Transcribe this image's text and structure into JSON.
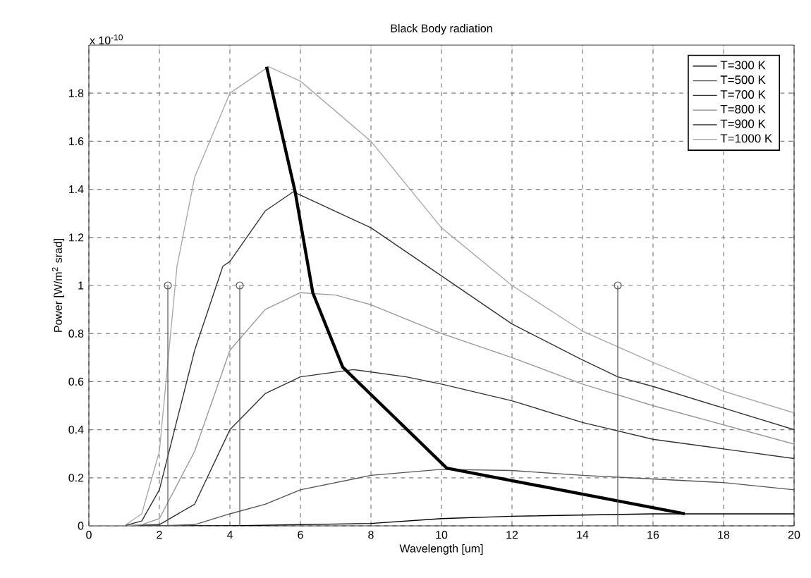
{
  "chart_data": {
    "type": "line",
    "title": "Black Body radiation",
    "xlabel": "Wavelength [um]",
    "ylabel": "Power [W/m$^{2}$ srad]",
    "annotations": [
      "x 10$^{-10}$"
    ],
    "xlim": [
      0,
      20
    ],
    "ylim": [
      0,
      2
    ],
    "xticks": [
      0,
      2,
      4,
      6,
      8,
      10,
      12,
      14,
      16,
      18,
      20
    ],
    "yticks": [
      0,
      0.2,
      0.4,
      0.6,
      0.8,
      1,
      1.2,
      1.4,
      1.6,
      1.8
    ],
    "grid": true,
    "legend": "top right",
    "line_style": "solid",
    "marker": "none",
    "series": [
      {
        "name": "T=300 K",
        "color": "#000000",
        "x": [
          0,
          4,
          6,
          8,
          10,
          12,
          14,
          16,
          18,
          20
        ],
        "values": [
          0,
          0,
          0.005,
          0.01,
          0.03,
          0.04,
          0.045,
          0.05,
          0.05,
          0.05
        ]
      },
      {
        "name": "T=500 K",
        "color": "#555555",
        "x": [
          0,
          2,
          3,
          4,
          5,
          6,
          8,
          10,
          12,
          14,
          16,
          18,
          20
        ],
        "values": [
          0,
          0,
          0.005,
          0.05,
          0.09,
          0.15,
          0.21,
          0.235,
          0.23,
          0.21,
          0.195,
          0.18,
          0.15
        ]
      },
      {
        "name": "T=700 K",
        "color": "#333333",
        "x": [
          0,
          1,
          2,
          3,
          4,
          5,
          6,
          7.5,
          9,
          10,
          12,
          14,
          16,
          18,
          20
        ],
        "values": [
          0,
          0,
          0.005,
          0.09,
          0.4,
          0.55,
          0.62,
          0.65,
          0.62,
          0.59,
          0.52,
          0.43,
          0.36,
          0.32,
          0.28
        ]
      },
      {
        "name": "T=800 K",
        "color": "#999999",
        "x": [
          0,
          1,
          1.5,
          2,
          3,
          4,
          5,
          6,
          7,
          8,
          10,
          12,
          14,
          16,
          18,
          20
        ],
        "values": [
          0,
          0,
          0.005,
          0.03,
          0.31,
          0.73,
          0.9,
          0.97,
          0.96,
          0.92,
          0.8,
          0.7,
          0.59,
          0.5,
          0.42,
          0.34
        ]
      },
      {
        "name": "T=900 K",
        "color": "#333333",
        "x": [
          0,
          1,
          1.5,
          2,
          3,
          3.8,
          4,
          5,
          5.8,
          8,
          10,
          12,
          14,
          15,
          16,
          18,
          20
        ],
        "values": [
          0,
          0,
          0.02,
          0.15,
          0.73,
          1.08,
          1.1,
          1.31,
          1.39,
          1.24,
          1.04,
          0.84,
          0.69,
          0.62,
          0.58,
          0.49,
          0.4
        ]
      },
      {
        "name": "T=1000 K",
        "color": "#aaaaaa",
        "x": [
          0,
          1,
          1.5,
          2,
          2.5,
          3,
          4,
          5.1,
          6,
          8,
          10,
          12,
          14,
          16,
          18,
          20
        ],
        "values": [
          0,
          0,
          0.05,
          0.31,
          1.08,
          1.45,
          1.8,
          1.91,
          1.85,
          1.6,
          1.24,
          1,
          0.81,
          0.68,
          0.56,
          0.47
        ]
      },
      {
        "color": "#000000",
        "x": [
          5.04,
          5.85,
          6.35,
          7.2,
          10.15,
          16.9
        ],
        "values": [
          1.91,
          1.39,
          0.97,
          0.66,
          0.24,
          0.05
        ]
      },
      {
        "type": "lollipop",
        "marker": "circle",
        "color": "#555555",
        "x": [
          2.24,
          4.28,
          15
        ],
        "values": [
          1,
          1,
          1
        ]
      }
    ]
  }
}
